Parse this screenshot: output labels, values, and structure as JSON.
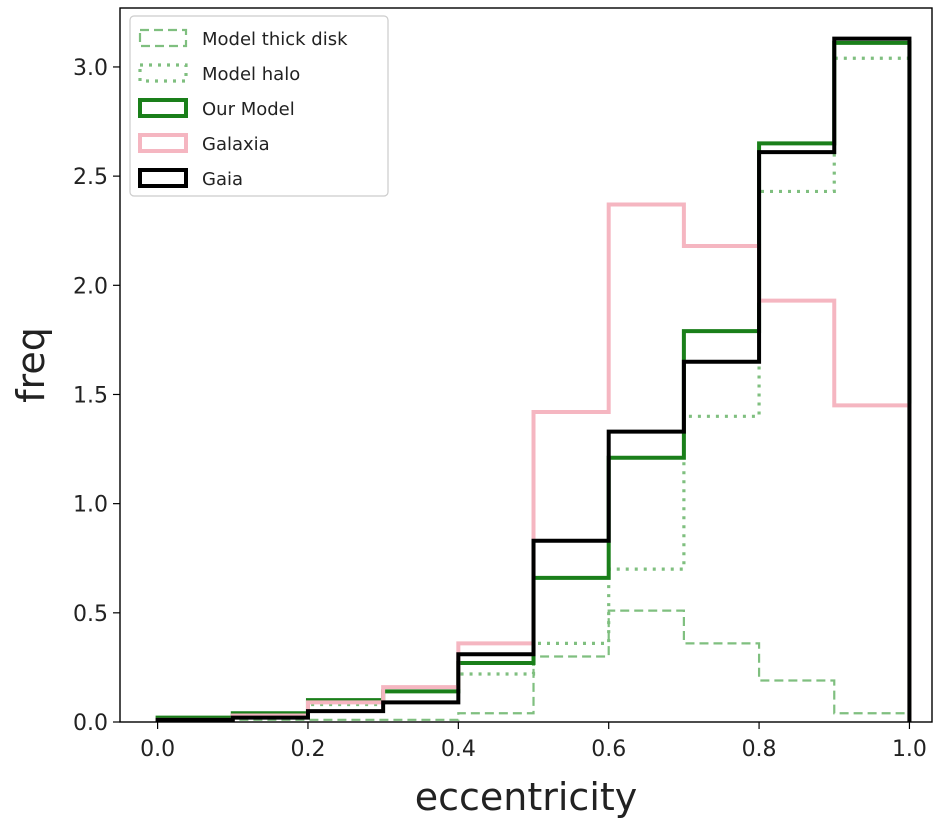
{
  "chart_data": {
    "type": "histogram-step",
    "xlabel": "eccentricity",
    "ylabel": "freq",
    "xlim": [
      -0.05,
      1.03
    ],
    "ylim": [
      0.0,
      3.27
    ],
    "xticks": [
      0.0,
      0.2,
      0.4,
      0.6,
      0.8,
      1.0
    ],
    "xtick_labels": [
      "0.0",
      "0.2",
      "0.4",
      "0.6",
      "0.8",
      "1.0"
    ],
    "yticks": [
      0.0,
      0.5,
      1.0,
      1.5,
      2.0,
      2.5,
      3.0
    ],
    "ytick_labels": [
      "0.0",
      "0.5",
      "1.0",
      "1.5",
      "2.0",
      "2.5",
      "3.0"
    ],
    "bin_edges": [
      0.0,
      0.1,
      0.2,
      0.3,
      0.4,
      0.5,
      0.6,
      0.7,
      0.8,
      0.9,
      1.0
    ],
    "legend_position": "upper-left",
    "series": [
      {
        "name": "Model thick disk",
        "color": "#7fbf7f",
        "style": "dashed",
        "values": [
          0.01,
          0.01,
          0.01,
          0.01,
          0.04,
          0.3,
          0.51,
          0.36,
          0.19,
          0.04
        ]
      },
      {
        "name": "Model halo",
        "color": "#7fbf7f",
        "style": "dotted",
        "values": [
          0.02,
          0.04,
          0.08,
          0.14,
          0.22,
          0.36,
          0.7,
          1.4,
          2.43,
          3.04
        ]
      },
      {
        "name": "Our Model",
        "color": "#1a7f1a",
        "style": "solid-thick",
        "values": [
          0.02,
          0.04,
          0.1,
          0.14,
          0.27,
          0.66,
          1.21,
          1.79,
          2.65,
          3.11
        ]
      },
      {
        "name": "Galaxia",
        "color": "#f5b6c1",
        "style": "solid-thick",
        "values": [
          0.01,
          0.03,
          0.09,
          0.16,
          0.36,
          1.42,
          2.37,
          2.18,
          1.93,
          1.45
        ]
      },
      {
        "name": "Gaia",
        "color": "#000000",
        "style": "solid-thick",
        "values": [
          0.01,
          0.02,
          0.05,
          0.09,
          0.31,
          0.83,
          1.33,
          1.65,
          2.61,
          3.13
        ]
      }
    ]
  }
}
